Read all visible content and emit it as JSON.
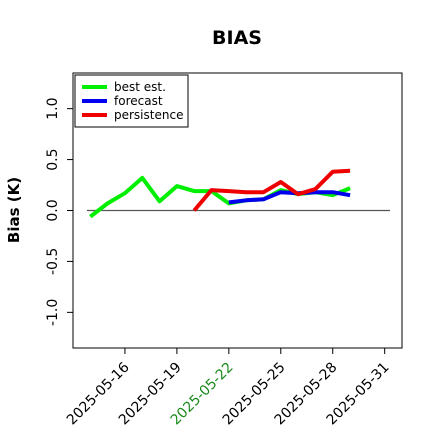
{
  "chart_data": {
    "type": "line",
    "title": "BIAS",
    "xlabel": "",
    "ylabel": "Bias (K)",
    "xlim": [
      "2025-05-13",
      "2025-06-01"
    ],
    "ylim": [
      -1.35,
      1.35
    ],
    "yticks": [
      -1.0,
      -0.5,
      0.0,
      0.5,
      1.0
    ],
    "ytick_labels": [
      "-1.0",
      "-0.5",
      "0.0",
      "0.5",
      "1.0"
    ],
    "xticks": [
      "2025-05-16",
      "2025-05-19",
      "2025-05-22",
      "2025-05-25",
      "2025-05-28",
      "2025-05-31"
    ],
    "xtick_labels": [
      "2025-05-16",
      "2025-05-19",
      "2025-05-22",
      "2025-05-25",
      "2025-05-28",
      "2025-05-31"
    ],
    "highlighted_tick": "2025-05-22",
    "highlight_color": "#1a8a1a",
    "zero_line": true,
    "zero_line_color": "#555555",
    "grid": false,
    "legend_position": "top-left",
    "series": [
      {
        "name": "best est.",
        "color": "#00ee00",
        "x": [
          "2025-05-14",
          "2025-05-15",
          "2025-05-16",
          "2025-05-17",
          "2025-05-18",
          "2025-05-19",
          "2025-05-20",
          "2025-05-21",
          "2025-05-22",
          "2025-05-23",
          "2025-05-24",
          "2025-05-25",
          "2025-05-26",
          "2025-05-27",
          "2025-05-28",
          "2025-05-29"
        ],
        "values": [
          -0.06,
          0.07,
          0.17,
          0.32,
          0.09,
          0.24,
          0.19,
          0.19,
          0.07,
          0.1,
          0.11,
          0.2,
          0.16,
          0.18,
          0.15,
          0.22
        ]
      },
      {
        "name": "forecast",
        "color": "#0000ee",
        "x": [
          "2025-05-22",
          "2025-05-23",
          "2025-05-24",
          "2025-05-25",
          "2025-05-26",
          "2025-05-27",
          "2025-05-28",
          "2025-05-29"
        ],
        "values": [
          0.08,
          0.1,
          0.11,
          0.18,
          0.17,
          0.18,
          0.18,
          0.15
        ]
      },
      {
        "name": "persistence",
        "color": "#ee0000",
        "x": [
          "2025-05-20",
          "2025-05-21",
          "2025-05-22",
          "2025-05-23",
          "2025-05-24",
          "2025-05-25",
          "2025-05-26",
          "2025-05-27",
          "2025-05-28",
          "2025-05-29"
        ],
        "values": [
          0.0,
          0.2,
          0.19,
          0.18,
          0.18,
          0.28,
          0.16,
          0.21,
          0.38,
          0.39
        ]
      }
    ]
  }
}
